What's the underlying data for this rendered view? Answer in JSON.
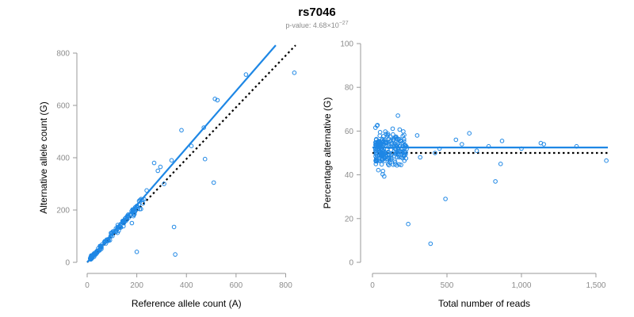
{
  "colors": {
    "points": "#1e87e5",
    "fit": "#1e87e5",
    "ref": "#000000",
    "axis": "#9a9a9a",
    "tick": "#8c8c8c"
  },
  "header": {
    "title": "rs7046",
    "pvalue_prefix": "p-value: 4.68×10",
    "pvalue_exp": "−27"
  },
  "chart_data": [
    {
      "type": "scatter",
      "title": "",
      "xlabel": "Reference allele count (A)",
      "ylabel": "Alternative allele count (G)",
      "xlim": [
        0,
        840
      ],
      "ylim": [
        0,
        800
      ],
      "xticks": [
        0,
        200,
        400,
        600,
        800
      ],
      "yticks": [
        0,
        200,
        400,
        600,
        800
      ],
      "xtick_labels": [
        "0",
        "200",
        "400",
        "600",
        "800"
      ],
      "ytick_labels": [
        "0",
        "200",
        "400",
        "600",
        "800"
      ],
      "fit_line": {
        "x": [
          0,
          760
        ],
        "y": [
          0,
          830
        ],
        "style": "solid"
      },
      "ref_line": {
        "x": [
          0,
          840
        ],
        "y": [
          0,
          830
        ],
        "style": "dotted"
      },
      "outliers": [
        [
          835,
          725
        ],
        [
          640,
          718
        ],
        [
          515,
          625
        ],
        [
          525,
          620
        ],
        [
          380,
          505
        ],
        [
          470,
          515
        ],
        [
          420,
          445
        ],
        [
          475,
          395
        ],
        [
          510,
          305
        ],
        [
          350,
          135
        ],
        [
          355,
          30
        ],
        [
          200,
          40
        ],
        [
          180,
          150
        ],
        [
          270,
          380
        ],
        [
          285,
          350
        ],
        [
          295,
          365
        ],
        [
          240,
          275
        ],
        [
          310,
          300
        ],
        [
          340,
          390
        ]
      ],
      "cluster": {
        "n": 140,
        "x_range": [
          12,
          230
        ],
        "slope": 1.05,
        "spread": 0.15
      }
    },
    {
      "type": "scatter",
      "title": "",
      "xlabel": "Total number of reads",
      "ylabel": "Percentage alternative (G)",
      "xlim": [
        0,
        1580
      ],
      "ylim": [
        0,
        100
      ],
      "xticks": [
        0,
        500,
        1000,
        1500
      ],
      "yticks": [
        0,
        20,
        40,
        60,
        80,
        100
      ],
      "xtick_labels": [
        "0",
        "500",
        "1,000",
        "1,500"
      ],
      "ytick_labels": [
        "0",
        "20",
        "40",
        "60",
        "80",
        "100"
      ],
      "fit_line": {
        "x": [
          0,
          1580
        ],
        "y": [
          52.5,
          52.5
        ],
        "style": "solid"
      },
      "ref_line": {
        "x": [
          0,
          1580
        ],
        "y": [
          50,
          50
        ],
        "style": "dotted"
      },
      "outliers": [
        [
          1570,
          46.5
        ],
        [
          1370,
          53
        ],
        [
          1130,
          54.5
        ],
        [
          1150,
          54
        ],
        [
          1000,
          52
        ],
        [
          870,
          55.5
        ],
        [
          860,
          45
        ],
        [
          825,
          37
        ],
        [
          780,
          53
        ],
        [
          650,
          59
        ],
        [
          600,
          54
        ],
        [
          490,
          29
        ],
        [
          390,
          8.5
        ],
        [
          240,
          17.5
        ],
        [
          700,
          51
        ],
        [
          560,
          56
        ],
        [
          450,
          52
        ],
        [
          420,
          50
        ],
        [
          300,
          58
        ],
        [
          320,
          48
        ]
      ],
      "cluster": {
        "n": 220,
        "x_range": [
          20,
          230
        ],
        "center": 52,
        "spread": 8
      }
    }
  ]
}
